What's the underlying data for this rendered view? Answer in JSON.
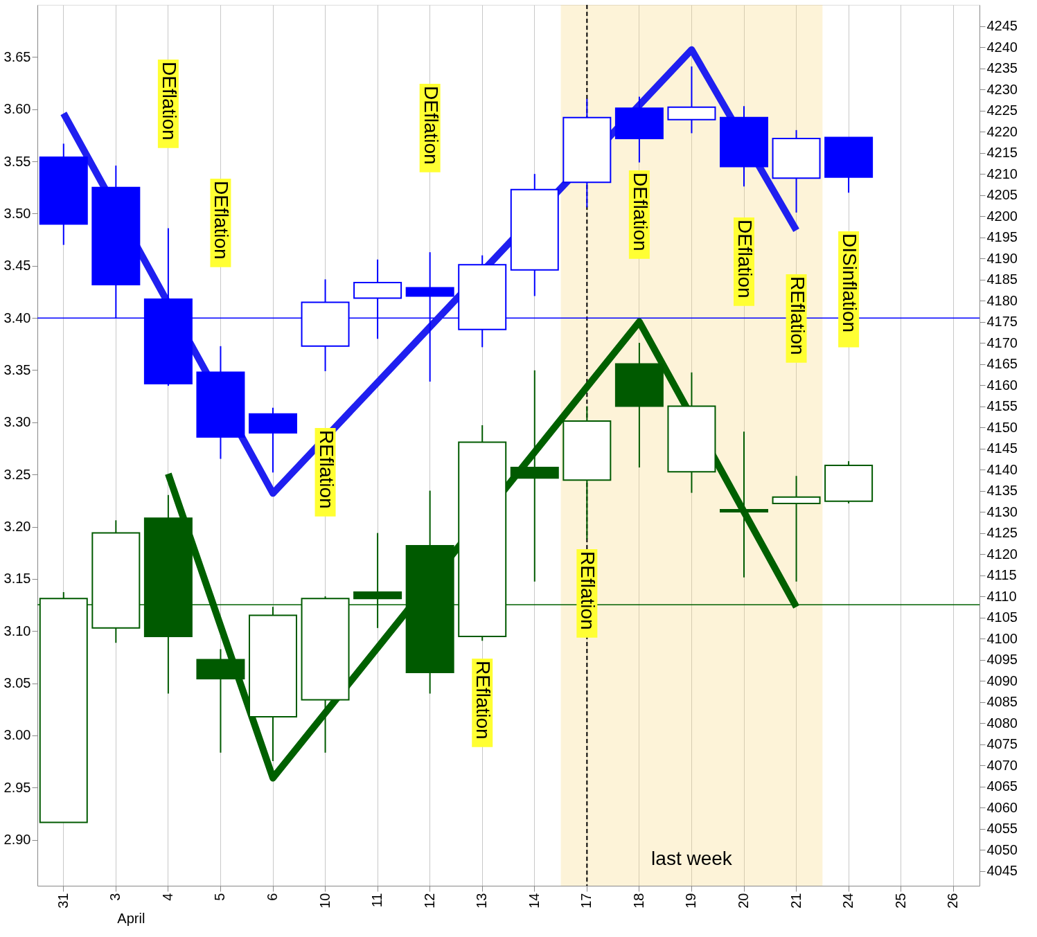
{
  "chart_data": {
    "type": "candlestick",
    "categories": [
      "31",
      "3",
      "4",
      "5",
      "6",
      "10",
      "11",
      "12",
      "13",
      "14",
      "17",
      "18",
      "19",
      "20",
      "21",
      "24",
      "25",
      "26"
    ],
    "series": [
      {
        "type": "candlestick",
        "color": "#0000ff",
        "axis": "y",
        "ohlc": [
          [
            3.554,
            3.567,
            3.47,
            3.49
          ],
          [
            3.525,
            3.546,
            3.4,
            3.432
          ],
          [
            3.418,
            3.486,
            3.335,
            3.337
          ],
          [
            3.348,
            3.373,
            3.265,
            3.286
          ],
          [
            3.308,
            3.314,
            3.252,
            3.29
          ],
          [
            3.373,
            3.437,
            3.349,
            3.415
          ],
          [
            3.419,
            3.456,
            3.38,
            3.434
          ],
          [
            3.429,
            3.463,
            3.339,
            3.421
          ],
          [
            3.389,
            3.46,
            3.372,
            3.451
          ],
          [
            3.446,
            3.538,
            3.421,
            3.523
          ],
          [
            3.53,
            3.61,
            3.506,
            3.592
          ],
          [
            3.601,
            3.612,
            3.549,
            3.572
          ],
          [
            3.59,
            3.641,
            3.577,
            3.602
          ],
          [
            3.592,
            3.603,
            3.526,
            3.545
          ],
          [
            3.534,
            3.58,
            3.501,
            3.572
          ],
          [
            3.573,
            3.573,
            3.52,
            3.535
          ],
          null,
          null
        ]
      },
      {
        "type": "candlestick",
        "color": "#005a00",
        "axis": "y2",
        "ohlc": [
          [
            4056.5,
            4111,
            4056.5,
            4109.5
          ],
          [
            4102.5,
            4128,
            4099,
            4125
          ],
          [
            4128.5,
            4134,
            4087,
            4100.5
          ],
          [
            4095,
            4097.5,
            4073,
            4090.5
          ],
          [
            4081.5,
            4107.5,
            4071,
            4105.5
          ],
          [
            4085.5,
            4110,
            4073,
            4109.5
          ],
          [
            4111,
            4125,
            4102.5,
            4109.5
          ],
          [
            4122,
            4135,
            4087,
            4092
          ],
          [
            4100.5,
            4150.5,
            4099.5,
            4146.5
          ],
          [
            4140.5,
            4163.5,
            4113.5,
            4138
          ],
          [
            4137.5,
            4155,
            4123.5,
            4151.5
          ],
          [
            4165,
            4170,
            4140.5,
            4155
          ],
          [
            4139.5,
            4163,
            4134.5,
            4155
          ],
          [
            4130.5,
            4149,
            4114.5,
            4130
          ],
          [
            4132,
            4138.5,
            4113.5,
            4133.5
          ],
          [
            4132.5,
            4142,
            4132,
            4141
          ],
          null,
          null
        ]
      },
      {
        "type": "line",
        "color": "#1f1ff0",
        "axis": "y",
        "x": [
          "31",
          "6",
          "19",
          "21"
        ],
        "values": [
          3.596,
          3.232,
          3.657,
          3.484
        ]
      },
      {
        "type": "line",
        "color": "#006000",
        "axis": "y2",
        "x": [
          "4",
          "6",
          "18",
          "21"
        ],
        "values": [
          4139,
          4067,
          4175,
          4107.5
        ]
      }
    ],
    "ylim": [
      2.856,
      3.7
    ],
    "yticks": [
      {
        "value": 2.9,
        "label": "2.90"
      },
      {
        "value": 2.95,
        "label": "2.95"
      },
      {
        "value": 3.0,
        "label": "3.00"
      },
      {
        "value": 3.05,
        "label": "3.05"
      },
      {
        "value": 3.1,
        "label": "3.10"
      },
      {
        "value": 3.15,
        "label": "3.15"
      },
      {
        "value": 3.2,
        "label": "3.20"
      },
      {
        "value": 3.25,
        "label": "3.25"
      },
      {
        "value": 3.3,
        "label": "3.30"
      },
      {
        "value": 3.35,
        "label": "3.35"
      },
      {
        "value": 3.4,
        "label": "3.40"
      },
      {
        "value": 3.45,
        "label": "3.45"
      },
      {
        "value": 3.5,
        "label": "3.50"
      },
      {
        "value": 3.55,
        "label": "3.55"
      },
      {
        "value": 3.6,
        "label": "3.60"
      },
      {
        "value": 3.65,
        "label": "3.65"
      }
    ],
    "y2lim": [
      4041.5,
      4250
    ],
    "y2ticks": [
      4045,
      4050,
      4055,
      4060,
      4065,
      4070,
      4075,
      4080,
      4085,
      4090,
      4095,
      4100,
      4105,
      4110,
      4115,
      4120,
      4125,
      4130,
      4135,
      4140,
      4145,
      4150,
      4155,
      4160,
      4165,
      4170,
      4175,
      4180,
      4185,
      4190,
      4195,
      4200,
      4205,
      4210,
      4215,
      4220,
      4225,
      4230,
      4235,
      4240,
      4245
    ],
    "grid": "x",
    "ref_lines": [
      {
        "axis": "y",
        "value": 3.4,
        "color": "#0000ff",
        "line_style": "solid"
      },
      {
        "axis": "y2",
        "value": 4108,
        "color": "#006000",
        "line_style": "solid"
      },
      {
        "axis": "x",
        "value": "17",
        "color": "#000000",
        "line_style": "dashed"
      }
    ],
    "bands": [
      {
        "axis": "x",
        "from": "17",
        "to": "21",
        "label": "last week",
        "color": "#f8d77d"
      }
    ],
    "annotations": [
      "DEflation",
      "DEflation",
      "REflation",
      "DEflation",
      "REflation",
      "REflation",
      "DEflation",
      "DEflation",
      "REflation",
      "DISinflation",
      "April"
    ]
  }
}
